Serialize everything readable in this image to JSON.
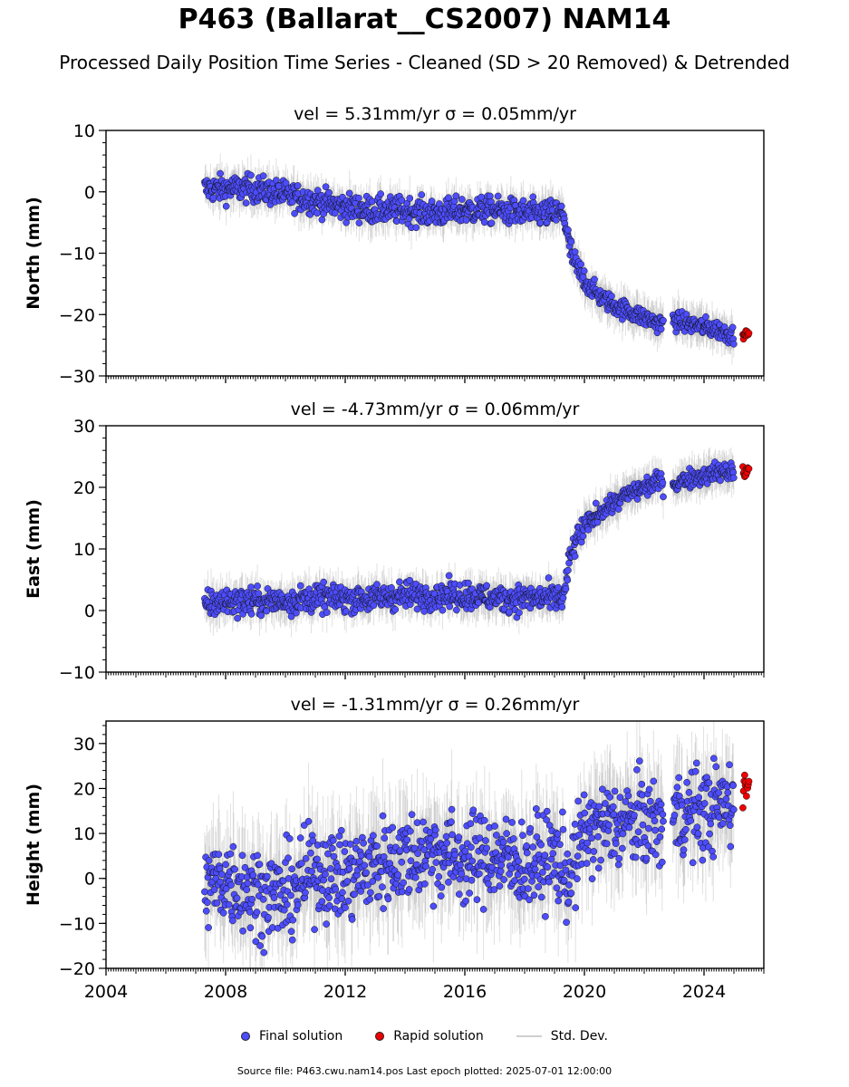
{
  "title": "P463 (Ballarat__CS2007) NAM14",
  "subtitle": "Processed Daily Position Time Series - Cleaned (SD > 20 Removed) & Detrended",
  "legend": {
    "final": "Final solution",
    "rapid": "Rapid solution",
    "std": "Std. Dev."
  },
  "footer": "Source file: P463.cwu.nam14.pos  Last epoch plotted: 2025-07-01 12:00:00",
  "colors": {
    "final": "#4d4dff",
    "rapid": "#ee0000",
    "std": "#bbbbbb"
  },
  "chart_data": [
    {
      "type": "scatter",
      "panel": "north",
      "title": "vel = 5.31mm/yr   σ = 0.05mm/yr",
      "ylabel": "North (mm)",
      "xlim": [
        2004,
        2026
      ],
      "ylim": [
        -30,
        10
      ],
      "yticks": [
        -30,
        -20,
        -10,
        0,
        10
      ],
      "xticks": [
        "2004",
        "2008",
        "2012",
        "2016",
        "2020",
        "2024"
      ],
      "tick_labels_shown": false,
      "series": [
        {
          "name": "Final solution",
          "x": [
            2007.3,
            2008.0,
            2009.0,
            2010.0,
            2011.0,
            2012.0,
            2013.0,
            2014.0,
            2015.0,
            2016.0,
            2017.0,
            2018.0,
            2019.0,
            2019.3,
            2019.5,
            2019.7,
            2020.0,
            2020.5,
            2021.0,
            2021.5,
            2022.0,
            2022.5,
            2023.0,
            2023.5,
            2024.0,
            2024.5,
            2025.0
          ],
          "y": [
            0.5,
            0.5,
            0.5,
            -0.5,
            -1.5,
            -2.5,
            -3,
            -3,
            -3.5,
            -3,
            -3,
            -3.5,
            -3.5,
            -3.5,
            -9,
            -12,
            -14.5,
            -17,
            -18.5,
            -19.5,
            -20.5,
            -21.5,
            -21,
            -21.5,
            -22,
            -22.5,
            -23.5
          ]
        },
        {
          "name": "Rapid solution",
          "x": [
            2025.3,
            2025.5
          ],
          "y": [
            -23.5,
            -23.5
          ]
        }
      ]
    },
    {
      "type": "scatter",
      "panel": "east",
      "title": "vel = -4.73mm/yr   σ = 0.06mm/yr",
      "ylabel": "East (mm)",
      "xlim": [
        2004,
        2026
      ],
      "ylim": [
        -10,
        30
      ],
      "yticks": [
        -10,
        0,
        10,
        20,
        30
      ],
      "xticks": [
        "2004",
        "2008",
        "2012",
        "2016",
        "2020",
        "2024"
      ],
      "tick_labels_shown": false,
      "series": [
        {
          "name": "Final solution",
          "x": [
            2007.3,
            2008.0,
            2009.0,
            2010.0,
            2011.0,
            2012.0,
            2013.0,
            2014.0,
            2015.0,
            2016.0,
            2017.0,
            2018.0,
            2019.0,
            2019.3,
            2019.5,
            2019.7,
            2020.0,
            2020.5,
            2021.0,
            2021.5,
            2022.0,
            2022.5,
            2023.0,
            2023.5,
            2024.0,
            2024.5,
            2025.0
          ],
          "y": [
            1,
            1.5,
            1.5,
            1.5,
            2,
            2,
            2,
            2.5,
            2.5,
            2.5,
            2,
            2,
            2,
            2,
            8,
            11,
            13.5,
            16,
            17.5,
            19,
            20,
            21,
            20.5,
            21.5,
            22,
            22.5,
            22.5
          ]
        },
        {
          "name": "Rapid solution",
          "x": [
            2025.3,
            2025.5
          ],
          "y": [
            22.5,
            22.5
          ]
        }
      ]
    },
    {
      "type": "scatter",
      "panel": "height",
      "title": "vel = -1.31mm/yr   σ = 0.26mm/yr",
      "ylabel": "Height (mm)",
      "xlim": [
        2004,
        2026
      ],
      "ylim": [
        -20,
        35
      ],
      "yticks": [
        -20,
        -10,
        0,
        10,
        20,
        30
      ],
      "xticks": [
        "2004",
        "2008",
        "2012",
        "2016",
        "2020",
        "2024"
      ],
      "tick_labels_shown": true,
      "series": [
        {
          "name": "Final solution",
          "x": [
            2007.3,
            2008.0,
            2009.0,
            2010.0,
            2011.0,
            2012.0,
            2013.0,
            2014.0,
            2015.0,
            2016.0,
            2017.0,
            2018.0,
            2019.0,
            2019.5,
            2020.0,
            2021.0,
            2022.0,
            2022.5,
            2023.0,
            2024.0,
            2025.0
          ],
          "y": [
            -2,
            0,
            -3,
            -4,
            2,
            0,
            3,
            5,
            6,
            4,
            5,
            3,
            5,
            0,
            10,
            12,
            13,
            12,
            14,
            15,
            17
          ]
        },
        {
          "name": "Rapid solution",
          "x": [
            2025.3,
            2025.5
          ],
          "y": [
            20,
            20
          ]
        }
      ]
    }
  ]
}
